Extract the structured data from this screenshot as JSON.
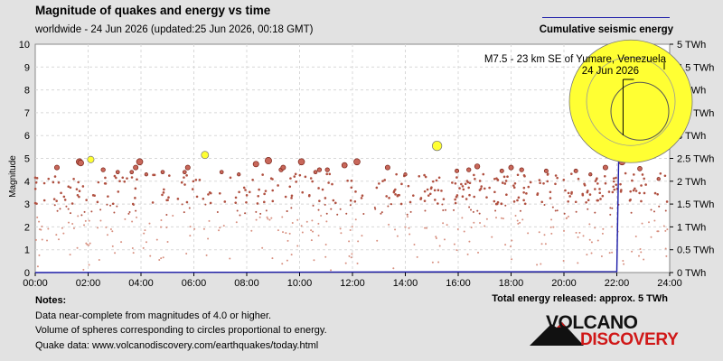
{
  "header": {
    "title": "Magnitude of quakes and energy vs time",
    "subtitle": "worldwide - 24 Jun 2026 (updated:25 Jun 2026, 00:18 GMT)",
    "energy_legend": "Cumulative seismic energy"
  },
  "notes": {
    "heading": "Notes:",
    "lines": [
      "Data near-complete from magnitudes of 4.0 or higher.",
      "Volume of spheres corresponding to circles proportional to energy.",
      "Quake data: www.volcanodiscovery.com/earthquakes/today.html"
    ]
  },
  "total_energy": "Total energy released: approx. 5 TWh",
  "logo": {
    "line1": "VOLCANO",
    "line2": "DISCOVERY"
  },
  "colors": {
    "background": "#e2e2e2",
    "plot_background": "#ffffff",
    "quake_fill": "#c8675a",
    "quake_stroke": "#7a2418",
    "highlight_fill": "#ffff33",
    "energy_line": "#1a1aa8",
    "logo_red": "#d01818"
  },
  "chart_data": {
    "type": "scatter",
    "ylabel": "Magnitude",
    "x_ticks": [
      "00:00",
      "02:00",
      "04:00",
      "06:00",
      "08:00",
      "10:00",
      "12:00",
      "14:00",
      "16:00",
      "18:00",
      "20:00",
      "22:00",
      "24:00"
    ],
    "xlim_hours": [
      0,
      24
    ],
    "ylim": [
      0,
      10
    ],
    "y_ticks": [
      0,
      1,
      2,
      3,
      4,
      5,
      6,
      7,
      8,
      9,
      10
    ],
    "y2_ticks": [
      "0 TWh",
      "0.5 TWh",
      "1 TWh",
      "1.5 TWh",
      "2 TWh",
      "2.5 TWh",
      "3 TWh",
      "3.5 TWh",
      "4 TWh",
      "4.5 TWh",
      "5 TWh"
    ],
    "y2lim_twh": [
      0,
      5
    ],
    "grid": true,
    "annotation": {
      "lines": [
        "M7.5 - 23 km SE of Yumare, Venezuela",
        "24 Jun 2026"
      ],
      "hour": 22.1,
      "magnitude": 7.5
    },
    "notable_quakes": [
      {
        "hour": 0.82,
        "mag": 4.6
      },
      {
        "hour": 1.67,
        "mag": 4.85
      },
      {
        "hour": 1.72,
        "mag": 4.8
      },
      {
        "hour": 2.1,
        "mag": 4.95,
        "highlight": true
      },
      {
        "hour": 2.57,
        "mag": 4.5
      },
      {
        "hour": 3.12,
        "mag": 4.4
      },
      {
        "hour": 3.65,
        "mag": 4.4
      },
      {
        "hour": 3.8,
        "mag": 4.6
      },
      {
        "hour": 3.95,
        "mag": 4.85
      },
      {
        "hour": 4.2,
        "mag": 4.3
      },
      {
        "hour": 4.82,
        "mag": 4.4
      },
      {
        "hour": 5.65,
        "mag": 4.4
      },
      {
        "hour": 5.77,
        "mag": 4.6
      },
      {
        "hour": 6.42,
        "mag": 5.15,
        "highlight": true
      },
      {
        "hour": 7.05,
        "mag": 4.4
      },
      {
        "hour": 7.7,
        "mag": 4.3
      },
      {
        "hour": 8.35,
        "mag": 4.75
      },
      {
        "hour": 8.82,
        "mag": 4.9
      },
      {
        "hour": 9.3,
        "mag": 4.5
      },
      {
        "hour": 9.38,
        "mag": 4.6
      },
      {
        "hour": 10.07,
        "mag": 4.85
      },
      {
        "hour": 10.6,
        "mag": 4.4
      },
      {
        "hour": 10.75,
        "mag": 4.5
      },
      {
        "hour": 11.05,
        "mag": 4.5
      },
      {
        "hour": 11.7,
        "mag": 4.7
      },
      {
        "hour": 12.17,
        "mag": 4.85
      },
      {
        "hour": 13.33,
        "mag": 4.6
      },
      {
        "hour": 14.0,
        "mag": 4.3
      },
      {
        "hour": 15.2,
        "mag": 5.55,
        "highlight": true
      },
      {
        "hour": 15.95,
        "mag": 4.45
      },
      {
        "hour": 16.4,
        "mag": 4.5
      },
      {
        "hour": 16.72,
        "mag": 4.65
      },
      {
        "hour": 17.65,
        "mag": 4.45
      },
      {
        "hour": 18.0,
        "mag": 4.6
      },
      {
        "hour": 18.4,
        "mag": 4.5
      },
      {
        "hour": 19.33,
        "mag": 4.45
      },
      {
        "hour": 20.45,
        "mag": 4.45
      },
      {
        "hour": 21.0,
        "mag": 4.3
      },
      {
        "hour": 21.57,
        "mag": 4.6
      },
      {
        "hour": 22.2,
        "mag": 4.85
      },
      {
        "hour": 22.87,
        "mag": 4.55
      },
      {
        "hour": 23.58,
        "mag": 4.1
      }
    ],
    "mainshock": {
      "hour": 22.12,
      "mag": 7.5
    },
    "small_quakes": "about 600 events between M0.1 and M4.3 spread across the whole day",
    "cumulative_energy_twh": [
      {
        "hour": 0.0,
        "twh": 0.0
      },
      {
        "hour": 22.0,
        "twh": 0.02
      },
      {
        "hour": 22.12,
        "twh": 4.2
      },
      {
        "hour": 22.2,
        "twh": 4.2
      },
      {
        "hour": 22.2,
        "twh": 4.62
      },
      {
        "hour": 24.0,
        "twh": 4.62
      }
    ]
  }
}
